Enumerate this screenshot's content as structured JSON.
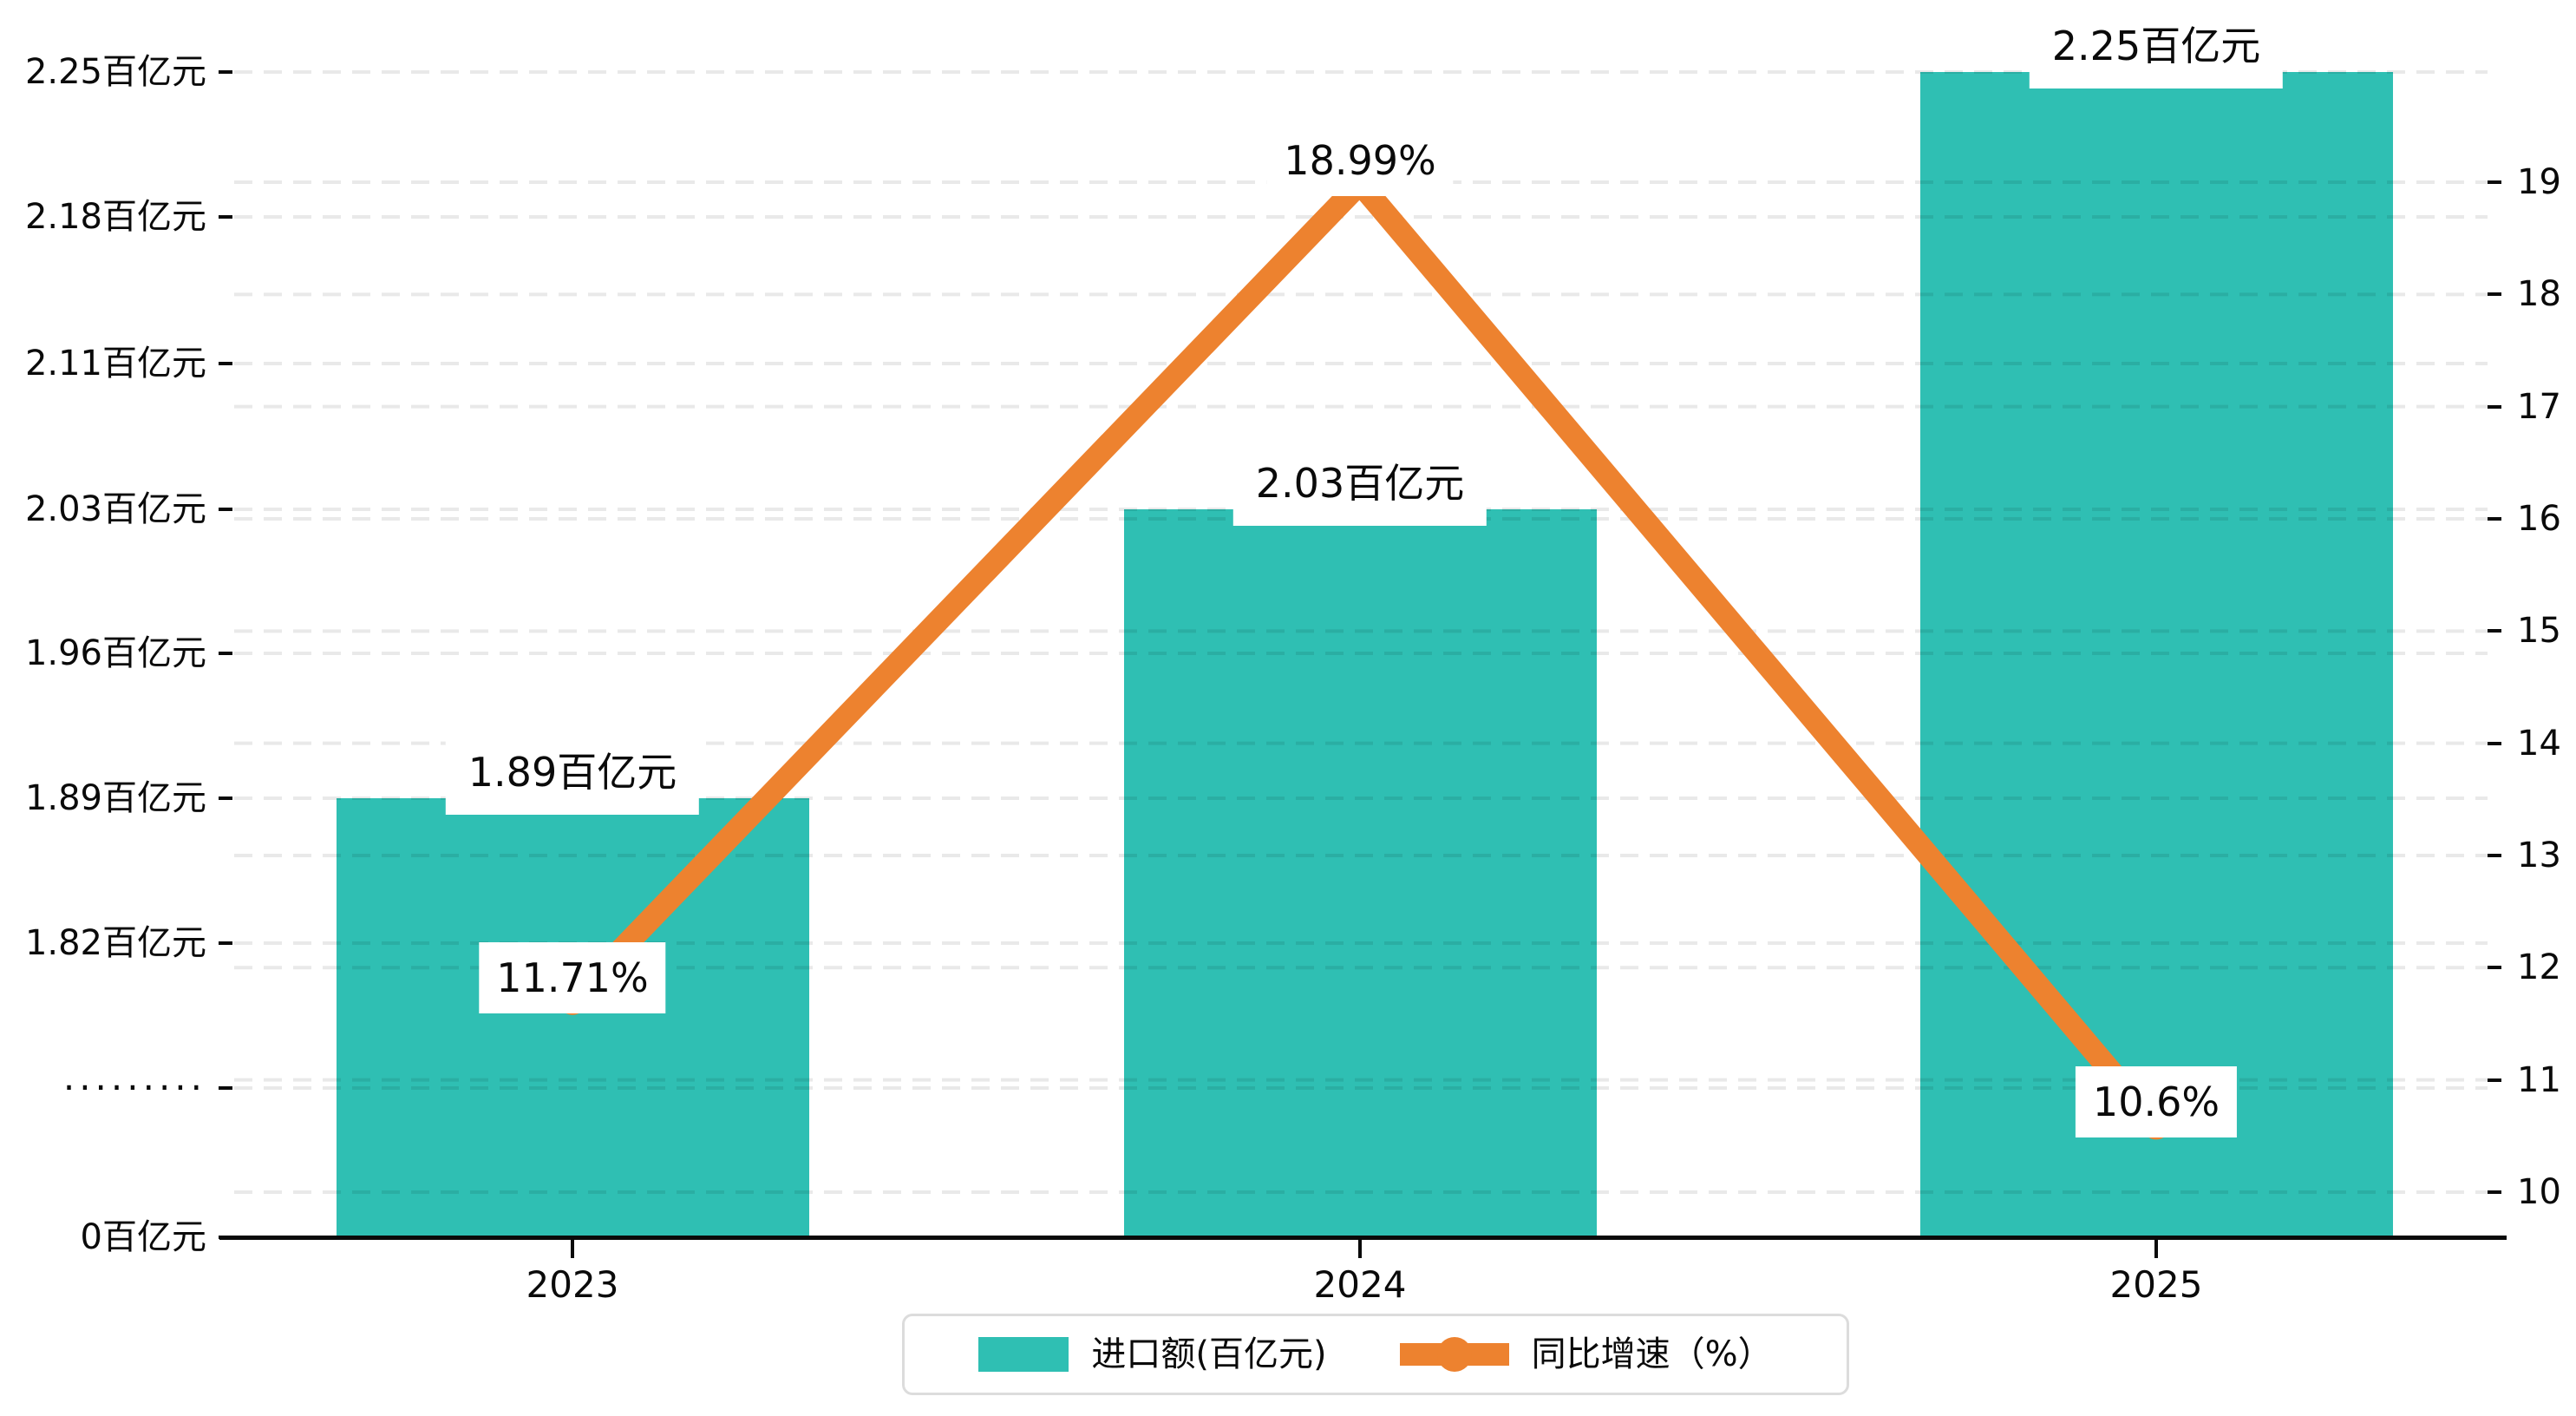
{
  "chart_data": {
    "type": "bar+line",
    "categories": [
      "2023",
      "2024",
      "2025"
    ],
    "series": [
      {
        "name": "进口额(百亿元)",
        "type": "bar",
        "axis": "left",
        "values": [
          1.89,
          2.03,
          2.25
        ],
        "value_labels": [
          "1.89百亿元",
          "2.03百亿元",
          "2.25百亿元"
        ],
        "color": "#2fbfb3"
      },
      {
        "name": "同比增速（%）",
        "type": "line",
        "axis": "right",
        "values": [
          11.71,
          18.99,
          10.6
        ],
        "value_labels": [
          "11.71%",
          "18.99%",
          "10.6%"
        ],
        "color": "#ed822f"
      }
    ],
    "left_axis": {
      "tick_labels": [
        "2.25百亿元",
        "2.18百亿元",
        "2.11百亿元",
        "2.03百亿元",
        "1.96百亿元",
        "1.89百亿元",
        "1.82百亿元",
        "·········",
        "0百亿元"
      ],
      "broken_axis": true
    },
    "right_axis": {
      "tick_labels": [
        "19",
        "18",
        "17",
        "16",
        "15",
        "14",
        "13",
        "12",
        "11",
        "10"
      ],
      "range": [
        10,
        19
      ]
    },
    "grid": true,
    "legend_position": "bottom",
    "legend": {
      "items": [
        {
          "label": "进口额(百亿元)",
          "glyph": "rect",
          "color": "#2fbfb3"
        },
        {
          "label": "同比增速（%）",
          "glyph": "line-dot",
          "color": "#ed822f"
        }
      ]
    },
    "colors": {
      "bar": "#2fbfb3",
      "line": "#ed822f",
      "text": "#0a0a0a",
      "gridline": "rgba(0,0,0,0.085)",
      "axis": "#0a0a0a",
      "label_background": "#ffffff",
      "legend_border": "#dcdcdc"
    }
  }
}
